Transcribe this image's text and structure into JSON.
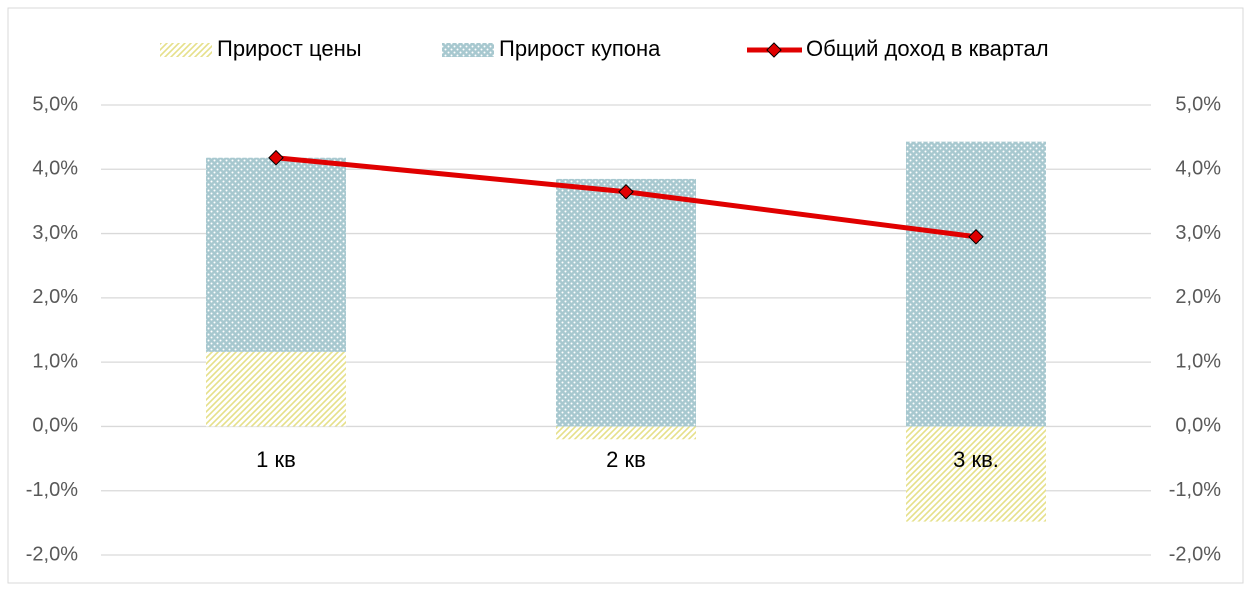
{
  "chart_data": {
    "type": "bar",
    "stacked": true,
    "categories": [
      "1 кв",
      "2 кв",
      "3 кв."
    ],
    "series": [
      {
        "name": "Прирост цены",
        "type": "bar",
        "color": "#e6e08a",
        "pattern": "hatch",
        "values": [
          1.16,
          -0.2,
          -1.48
        ]
      },
      {
        "name": "Прирост купона",
        "type": "bar",
        "color": "#5e9aa8",
        "pattern": "dots",
        "values": [
          3.02,
          3.85,
          4.43
        ]
      },
      {
        "name": "Общий доход в квартал",
        "type": "line",
        "color": "#e00000",
        "values": [
          4.18,
          3.65,
          2.95
        ]
      }
    ],
    "ylim": [
      -2,
      5
    ],
    "yticks": [
      {
        "value": -2,
        "label": "-2,0%"
      },
      {
        "value": -1,
        "label": "-1,0%"
      },
      {
        "value": 0,
        "label": "0,0%"
      },
      {
        "value": 1,
        "label": "1,0%"
      },
      {
        "value": 2,
        "label": "2,0%"
      },
      {
        "value": 3,
        "label": "3,0%"
      },
      {
        "value": 4,
        "label": "4,0%"
      },
      {
        "value": 5,
        "label": "5,0%"
      }
    ],
    "y2lim": [
      -2,
      5
    ],
    "y2ticks": [
      {
        "value": -2,
        "label": "-2,0%"
      },
      {
        "value": -1,
        "label": "-1,0%"
      },
      {
        "value": 0,
        "label": "0,0%"
      },
      {
        "value": 1,
        "label": "1,0%"
      },
      {
        "value": 2,
        "label": "2,0%"
      },
      {
        "value": 3,
        "label": "3,0%"
      },
      {
        "value": 4,
        "label": "4,0%"
      },
      {
        "value": 5,
        "label": "5,0%"
      }
    ],
    "grid": true,
    "legend": "top"
  }
}
